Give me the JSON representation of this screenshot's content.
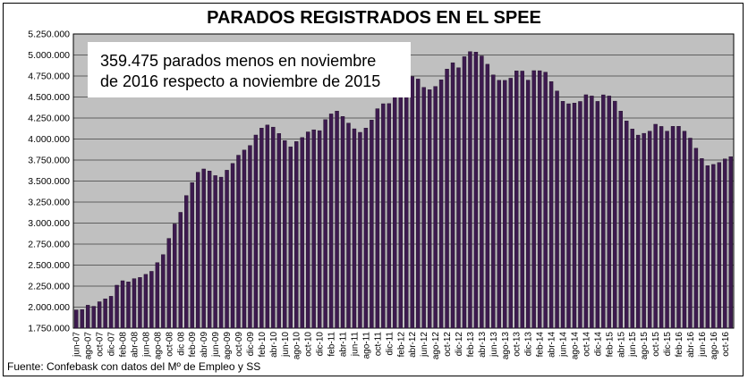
{
  "chart_data": {
    "type": "bar",
    "title": "PARADOS REGISTRADOS EN EL SPEE",
    "xlabel": "",
    "ylabel": "",
    "ylim": [
      1750000,
      5250000
    ],
    "yticks": [
      "1.750.000",
      "2.000.000",
      "2.250.000",
      "2.500.000",
      "2.750.000",
      "3.000.000",
      "3.250.000",
      "3.500.000",
      "3.750.000",
      "4.000.000",
      "4.250.000",
      "4.500.000",
      "4.750.000",
      "5.000.000",
      "5.250.000"
    ],
    "grid": "horizontal",
    "bar_color": "#3d1a4f",
    "background_color": "#c0c0c0",
    "annotation": [
      "359.475 parados menos en noviembre",
      "de 2016 respecto a noviembre de 2015"
    ],
    "source": "Fuente: Confebask con datos del Mº de Empleo y SS",
    "categories": [
      "jun-07",
      "jul-07",
      "ago-07",
      "sep-07",
      "oct-07",
      "nov-07",
      "dic-07",
      "ene-08",
      "feb-08",
      "mar-08",
      "abr-08",
      "may-08",
      "jun-08",
      "jul-08",
      "ago-08",
      "sep-08",
      "oct-08",
      "nov-08",
      "dic 08",
      "ene-09",
      "feb-09",
      "mar-09",
      "abr-09",
      "may-09",
      "jun-09",
      "jul-09",
      "ago-09",
      "sep-09",
      "oct-09",
      "nov-09",
      "dic-09",
      "ene-10",
      "feb-10",
      "mar-10",
      "abr-10",
      "may-10",
      "jun-10",
      "jul-10",
      "ago-10",
      "sep-10",
      "oct-10",
      "nov-10",
      "dic-10",
      "ene-11",
      "feb-11",
      "mar-11",
      "abr-11",
      "may-11",
      "jun-11",
      "jul-11",
      "ago-11",
      "sep-11",
      "oct-11",
      "nov-11",
      "dic-11",
      "ene-12",
      "feb-12",
      "mar-12",
      "abr-12",
      "may-12",
      "jun-12",
      "jul-12",
      "ago-12",
      "sep-12",
      "oct-12",
      "nov-12",
      "dic-12",
      "ene-13",
      "feb-13",
      "mar-13",
      "abr-13",
      "may-13",
      "jun-13",
      "jul-13",
      "ago-13",
      "sep-13",
      "oct-13",
      "nov-13",
      "dic-13",
      "ene-14",
      "feb-14",
      "mar-14",
      "abr-14",
      "may-14",
      "jun-14",
      "jul-14",
      "ago-14",
      "sep-14",
      "oct-14",
      "nov-14",
      "dic-14",
      "ene-15",
      "feb-15",
      "mar-15",
      "abr-15",
      "may-15",
      "jun-15",
      "jul-15",
      "ago-15",
      "sep-15",
      "oct-15",
      "nov-15",
      "dic-15",
      "ene-16",
      "feb-16",
      "mar-16",
      "abr-16",
      "may-16",
      "jun-16",
      "jul-16",
      "ago-16",
      "sep-16",
      "oct-16",
      "nov-16"
    ],
    "tick_labels": [
      "jun-07",
      "ago-07",
      "oct-07",
      "dic-07",
      "feb-08",
      "abr-08",
      "jun-08",
      "ago-08",
      "oct-08",
      "dic 08",
      "feb-09",
      "abr-09",
      "jun-09",
      "ago-09",
      "oct-09",
      "dic-09",
      "feb-10",
      "abr-10",
      "jun-10",
      "ago-10",
      "oct-10",
      "dic-10",
      "feb-11",
      "abr-11",
      "jun-11",
      "ago-11",
      "oct-11",
      "dic-11",
      "feb-12",
      "abr-12",
      "jun-12",
      "ago-12",
      "oct-12",
      "dic-12",
      "feb-13",
      "abr-13",
      "jun-13",
      "ago-13",
      "oct-13",
      "dic-13",
      "feb-14",
      "abr-14",
      "jun-14",
      "ago-14",
      "oct-14",
      "dic-14",
      "feb-15",
      "abr-15",
      "jun-15",
      "ago-15",
      "oct-15",
      "dic-15",
      "feb-16",
      "abr-16",
      "jun-16",
      "ago-16",
      "oct-16"
    ],
    "values": [
      1967000,
      1970000,
      2023000,
      2010000,
      2064000,
      2099000,
      2129000,
      2261000,
      2314000,
      2301000,
      2339000,
      2353000,
      2390000,
      2426000,
      2530000,
      2625000,
      2818000,
      2990000,
      3128000,
      3328000,
      3482000,
      3605000,
      3644000,
      3620000,
      3565000,
      3547000,
      3629000,
      3710000,
      3808000,
      3869000,
      3923000,
      4048000,
      4130000,
      4167000,
      4142000,
      4066000,
      3982000,
      3908000,
      3970000,
      4018000,
      4085000,
      4110000,
      4100000,
      4231000,
      4299000,
      4333000,
      4269000,
      4190000,
      4122000,
      4080000,
      4131000,
      4226000,
      4361000,
      4420000,
      4422000,
      4599000,
      4712000,
      4750000,
      4744000,
      4714000,
      4615000,
      4587000,
      4626000,
      4705000,
      4833000,
      4908000,
      4848000,
      4980000,
      5040000,
      5035000,
      4989000,
      4890000,
      4763000,
      4699000,
      4698000,
      4724000,
      4811000,
      4809000,
      4701000,
      4814000,
      4813000,
      4796000,
      4684000,
      4572000,
      4449000,
      4420000,
      4428000,
      4447000,
      4527000,
      4512000,
      4448000,
      4526000,
      4512000,
      4451000,
      4333000,
      4215000,
      4120000,
      4047000,
      4068000,
      4094000,
      4176000,
      4150000,
      4094000,
      4151000,
      4152000,
      4094000,
      4011000,
      3891000,
      3768000,
      3683000,
      3698000,
      3721000,
      3764000,
      3790000
    ]
  }
}
